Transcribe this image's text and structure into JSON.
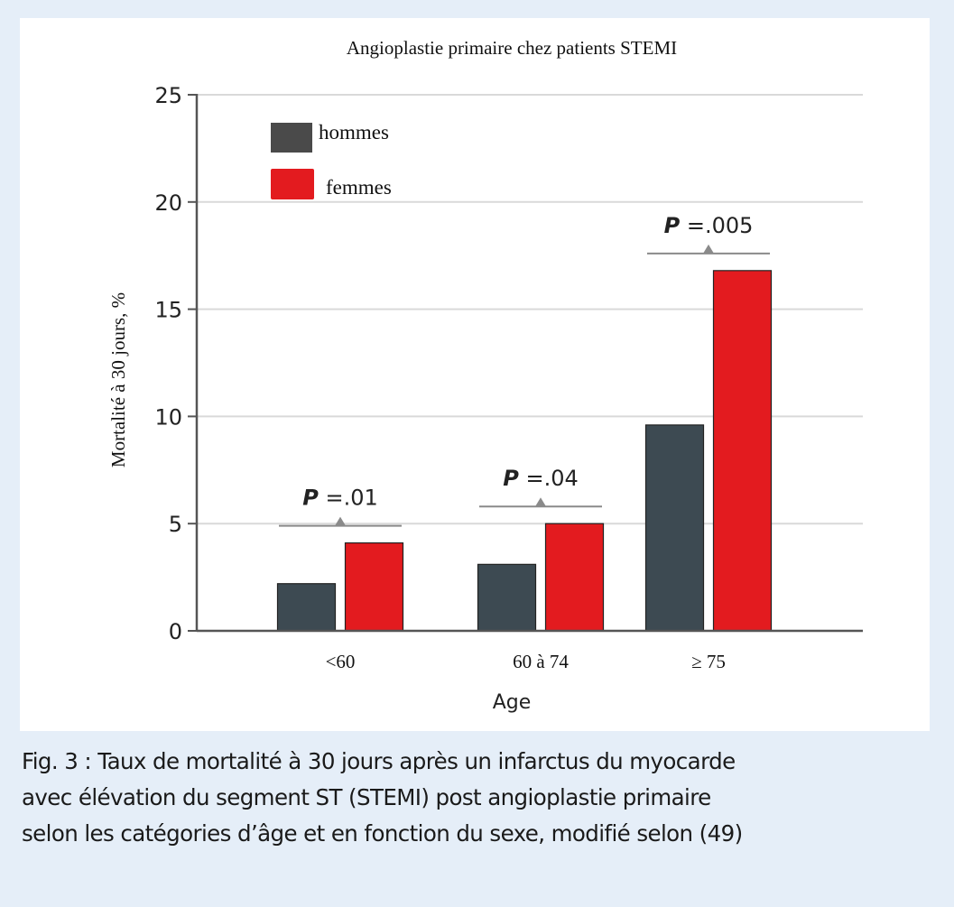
{
  "chart_data": {
    "type": "bar",
    "title": "Angioplastie primaire chez patients STEMI",
    "xlabel": "Age",
    "ylabel": "Mortalité à 30 jours, %",
    "ylim": [
      0,
      25
    ],
    "yticks": [
      0,
      5,
      10,
      15,
      20,
      25
    ],
    "grid": true,
    "legend_position": "top-left",
    "categories": [
      "<60",
      "60 à 74",
      "≥ 75"
    ],
    "series": [
      {
        "name": "hommes",
        "color": "#3d4a52",
        "values": [
          2.2,
          3.1,
          9.6
        ]
      },
      {
        "name": "femmes",
        "color": "#e31b1f",
        "values": [
          4.1,
          5.0,
          16.8
        ]
      }
    ],
    "annotations": [
      {
        "category": "<60",
        "label_prefix": "P",
        "label_value": " =.01",
        "bracket_level": 4.9
      },
      {
        "category": "60 à 74",
        "label_prefix": "P",
        "label_value": " =.04",
        "bracket_level": 5.8
      },
      {
        "category": "≥ 75",
        "label_prefix": "P",
        "label_value": " =.005",
        "bracket_level": 17.6
      }
    ]
  },
  "caption": {
    "lines": [
      "Fig. 3 : Taux de mortalité à 30 jours après un infarctus du myocarde",
      "avec élévation du segment ST (STEMI) post angioplastie primaire",
      "selon les catégories d’âge et en fonction du sexe, modifié selon (49)"
    ]
  }
}
